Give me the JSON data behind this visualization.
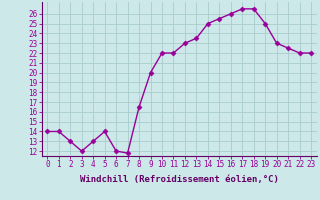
{
  "x": [
    0,
    1,
    2,
    3,
    4,
    5,
    6,
    7,
    8,
    9,
    10,
    11,
    12,
    13,
    14,
    15,
    16,
    17,
    18,
    19,
    20,
    21,
    22,
    23
  ],
  "y": [
    14,
    14,
    13,
    12,
    13,
    14,
    12,
    11.8,
    16.5,
    20,
    22,
    22,
    23,
    23.5,
    25,
    25.5,
    26,
    26.5,
    26.5,
    25,
    23,
    22.5,
    22,
    22
  ],
  "color": "#990099",
  "bg_color": "#cce8e8",
  "grid_color": "#aacccc",
  "xlabel": "Windchill (Refroidissement éolien,°C)",
  "ylim_min": 11.5,
  "ylim_max": 27.2,
  "xlim_min": -0.5,
  "xlim_max": 23.5,
  "yticks": [
    12,
    13,
    14,
    15,
    16,
    17,
    18,
    19,
    20,
    21,
    22,
    23,
    24,
    25,
    26
  ],
  "xticks": [
    0,
    1,
    2,
    3,
    4,
    5,
    6,
    7,
    8,
    9,
    10,
    11,
    12,
    13,
    14,
    15,
    16,
    17,
    18,
    19,
    20,
    21,
    22,
    23
  ],
  "marker": "D",
  "markersize": 2.5,
  "linewidth": 1.0,
  "xlabel_fontsize": 6.5,
  "tick_fontsize": 5.5,
  "spine_color": "#660066",
  "xlabel_color": "#660066"
}
